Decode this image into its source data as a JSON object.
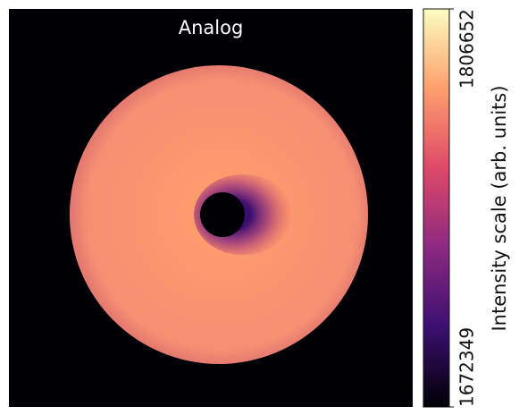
{
  "chart_data": {
    "type": "image",
    "title": "Analog",
    "colorbar": {
      "label": "Intensity scale (arb. units)",
      "lim": [
        1672349,
        1806652
      ],
      "ticks": [
        1672349,
        1806652
      ],
      "colormap": [
        "#000004",
        "#3b0f70",
        "#8c2981",
        "#de4968",
        "#fe9f6d",
        "#fcfdbf"
      ]
    }
  }
}
